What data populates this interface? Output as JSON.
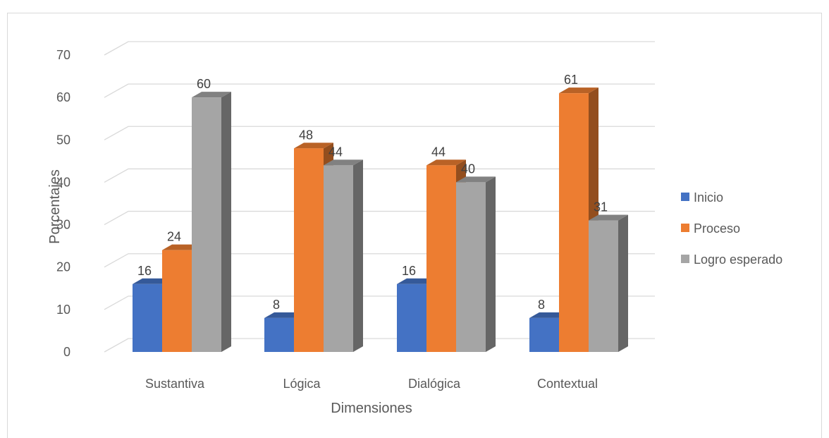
{
  "chart_data": {
    "type": "bar",
    "categories": [
      "Sustantiva",
      "Lógica",
      "Dialógica",
      "Contextual"
    ],
    "series": [
      {
        "name": "Inicio",
        "values": [
          16,
          8,
          16,
          8
        ]
      },
      {
        "name": "Proceso",
        "values": [
          24,
          48,
          44,
          61
        ]
      },
      {
        "name": "Logro esperado",
        "values": [
          60,
          44,
          40,
          31
        ]
      }
    ],
    "xlabel": "Dimensiones",
    "ylabel": "Porcentajes",
    "ylim": [
      0,
      70
    ],
    "yticks": [
      0,
      10,
      20,
      30,
      40,
      50,
      60,
      70
    ],
    "grid": true,
    "legend_position": "right",
    "colors": {
      "Inicio": "#4472c4",
      "Proceso": "#ed7d31",
      "Logro esperado": "#a5a5a5"
    }
  }
}
